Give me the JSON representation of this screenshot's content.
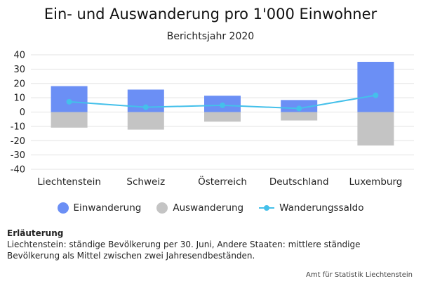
{
  "title": "Ein- und Auswanderung pro 1'000 Einwohner",
  "subtitle": "Berichtsjahr 2020",
  "colors": {
    "einwanderung": "#6b8ff5",
    "auswanderung": "#c4c4c4",
    "saldo": "#44c0ea",
    "grid": "#e3e3e3"
  },
  "legend": {
    "einwanderung": "Einwanderung",
    "auswanderung": "Auswanderung",
    "saldo": "Wanderungssaldo"
  },
  "note": {
    "title": "Erläuterung",
    "text": "Liechtenstein: ständige Bevölkerung per 30. Juni, Andere Staaten: mittlere ständige Bevölkerung als Mittel zwischen zwei Jahresendbeständen."
  },
  "source": "Amt für Statistik Liechtenstein",
  "chart_data": {
    "type": "bar",
    "title": "Ein- und Auswanderung pro 1'000 Einwohner",
    "subtitle": "Berichtsjahr 2020",
    "categories": [
      "Liechtenstein",
      "Schweiz",
      "Österreich",
      "Deutschland",
      "Luxemburg"
    ],
    "series": [
      {
        "name": "Einwanderung",
        "type": "bar",
        "values": [
          18.1,
          15.7,
          11.4,
          8.4,
          35.1
        ]
      },
      {
        "name": "Auswanderung",
        "type": "bar",
        "values": [
          -10.9,
          -12.3,
          -6.7,
          -5.9,
          -23.4
        ]
      },
      {
        "name": "Wanderungssaldo",
        "type": "line",
        "values": [
          7.2,
          3.4,
          4.7,
          2.5,
          11.7
        ]
      }
    ],
    "ylim": [
      -40,
      40
    ],
    "yticks": [
      40,
      30,
      20,
      10,
      0,
      -10,
      -20,
      -30,
      -40
    ],
    "grid": true,
    "legend_position": "bottom"
  }
}
